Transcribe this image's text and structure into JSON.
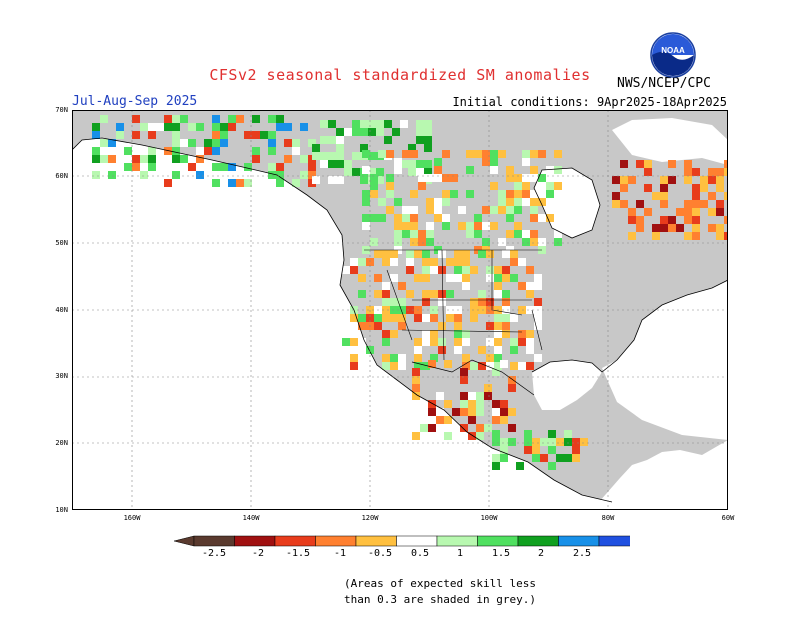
{
  "header": {
    "title": "CFSv2 seasonal standardized SM anomalies",
    "season": "Jul-Aug-Sep 2025",
    "initial_conditions": "Initial conditions: 9Apr2025-18Apr2025",
    "agency": "NWS/NCEP/CPC",
    "logo_text": "NOAA"
  },
  "map": {
    "lat_labels": [
      "70N",
      "60N",
      "50N",
      "40N",
      "30N",
      "20N",
      "10N"
    ],
    "lon_labels": [
      "160W",
      "140W",
      "120W",
      "100W",
      "80W",
      "60W"
    ],
    "lat_range": [
      10,
      70
    ],
    "lon_range": [
      -170,
      -60
    ],
    "grid": true,
    "colors": {
      "land_skill": "#c8c8c8",
      "ocean": "#ffffff",
      "coast": "#000000"
    }
  },
  "legend": {
    "labels": [
      "-2.5",
      "-2",
      "-1.5",
      "-1",
      "-0.5",
      "0.5",
      "1",
      "1.5",
      "2",
      "2.5"
    ],
    "colors": [
      "#5a3a2e",
      "#a01010",
      "#e83c1c",
      "#ff8030",
      "#ffc040",
      "#ffffff",
      "#b8f8b0",
      "#50e060",
      "#10a020",
      "#1890e8",
      "#2050e0"
    ]
  },
  "footnote": {
    "line1": "(Areas of expected skill less",
    "line2": "than 0.3 are shaded in grey.)"
  }
}
